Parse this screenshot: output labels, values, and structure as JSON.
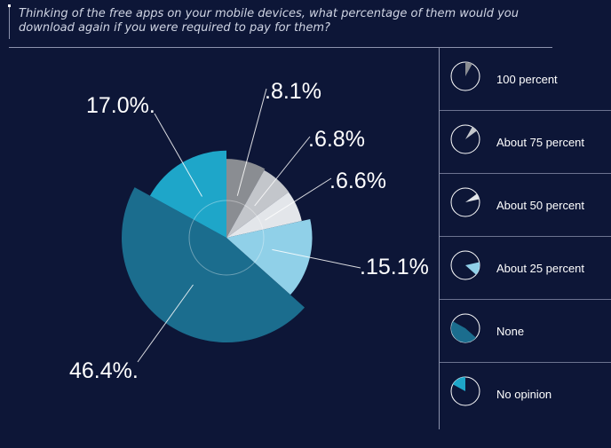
{
  "title": "Thinking of the free apps on your mobile devices, what percentage of them would you download again if you were required to pay for them?",
  "colors": {
    "background": "#0d1637",
    "text": "#ffffff",
    "rule": "#8c93ad"
  },
  "chart_data": {
    "type": "pie",
    "variant": "polar-area with connector labels",
    "categories": [
      "100 percent",
      "About 75 percent",
      "About 50 percent",
      "About 25 percent",
      "None",
      "No opinion"
    ],
    "values": [
      8.1,
      6.8,
      6.6,
      15.1,
      46.4,
      17.0
    ],
    "labels": [
      "8.1%",
      "6.8%",
      "6.6%",
      "15.1%",
      "46.4%",
      "17.0%"
    ],
    "colors": [
      "#8a8d92",
      "#c3c6cb",
      "#e3e6ea",
      "#90d0e8",
      "#1b6d8e",
      "#1ea6c9"
    ],
    "legend_position": "right",
    "grid": false
  },
  "legend": [
    {
      "label": "100 percent",
      "color": "#8a8d92"
    },
    {
      "label": "About 75 percent",
      "color": "#c3c6cb"
    },
    {
      "label": "About 50 percent",
      "color": "#e3e6ea"
    },
    {
      "label": "About 25 percent",
      "color": "#90d0e8"
    },
    {
      "label": "None",
      "color": "#1b6d8e"
    },
    {
      "label": "No opinion",
      "color": "#1ea6c9"
    }
  ]
}
